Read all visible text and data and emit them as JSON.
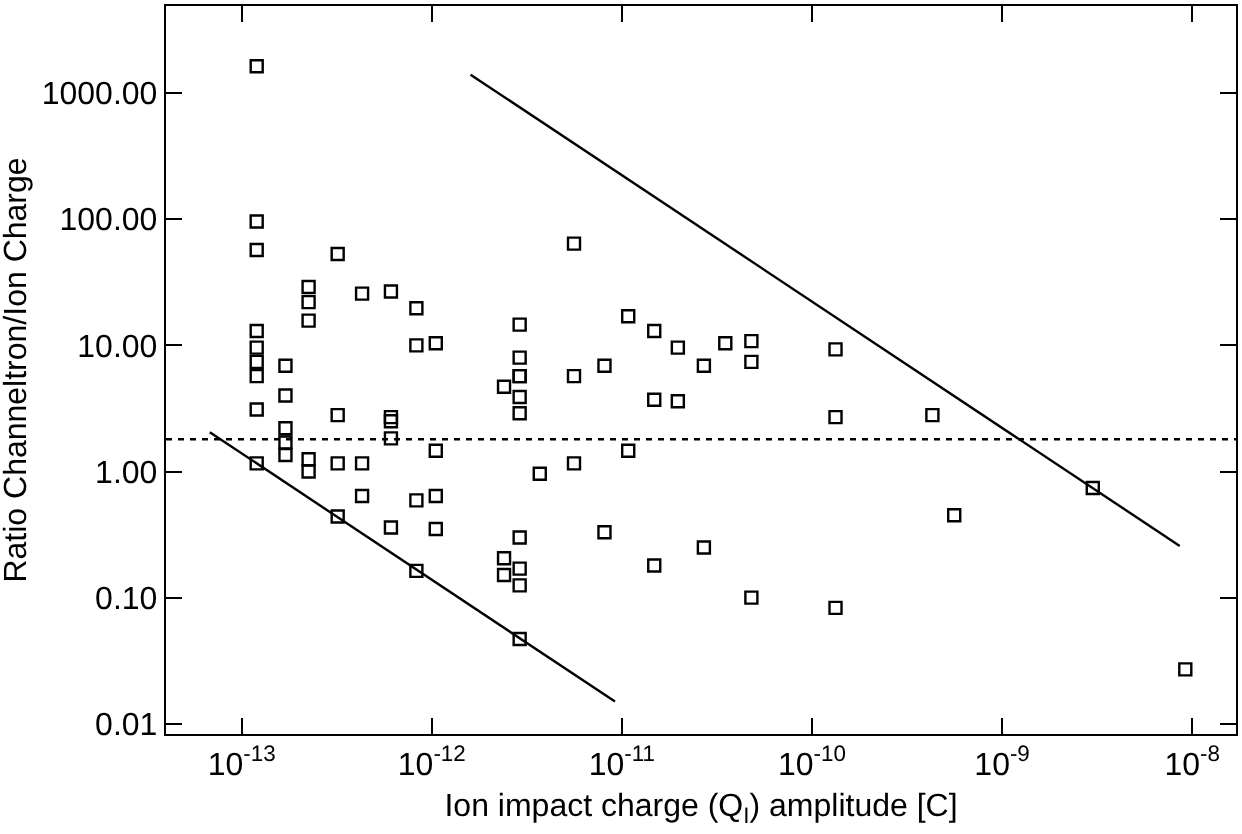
{
  "chart_data": {
    "type": "scatter",
    "xlabel": "Ion impact charge (Q$_{I}$) amplitude [C]",
    "ylabel": "Ratio Channeltron/Ion Charge",
    "log": "xy",
    "xlim": [
      4e-14,
      1.7e-08
    ],
    "xticks": [
      {
        "value": 1e-13,
        "label": "10$^{-13}$"
      },
      {
        "value": 1e-12,
        "label": "10$^{-12}$"
      },
      {
        "value": 1e-11,
        "label": "10$^{-11}$"
      },
      {
        "value": 1e-10,
        "label": "10$^{-10}$"
      },
      {
        "value": 1e-09,
        "label": "10$^{-9}$"
      },
      {
        "value": 1e-08,
        "label": "10$^{-8}$"
      }
    ],
    "ylim": [
      0.0083,
      4900
    ],
    "yticks": [
      {
        "value": 0.01,
        "label": "0.01"
      },
      {
        "value": 0.1,
        "label": "0.10"
      },
      {
        "value": 1,
        "label": "1.00"
      },
      {
        "value": 10,
        "label": "10.00"
      },
      {
        "value": 100,
        "label": "100.00"
      },
      {
        "value": 1000,
        "label": "1000.00"
      }
    ],
    "series": [
      {
        "marker": "square",
        "color": "#000000",
        "x": [
          1.2e-13,
          1.2e-13,
          1.2e-13,
          3.2e-13,
          2.25e-13,
          2.25e-13,
          2.25e-13,
          4.3e-13,
          6.1e-13,
          8.3e-13,
          8.3e-13,
          1.05e-12,
          1.2e-13,
          1.2e-13,
          1.2e-13,
          1.2e-13,
          1.7e-13,
          1.7e-13,
          1.2e-13,
          3.2e-13,
          6.1e-13,
          5.6e-12,
          2.9e-12,
          2.9e-12,
          2.9e-12,
          2.4e-12,
          2.9e-12,
          2.9e-12,
          2.9e-12,
          5.6e-12,
          8.1e-12,
          1.08e-11,
          1.48e-11,
          1.97e-11,
          2.7e-11,
          1.48e-11,
          1.97e-11,
          6.1e-13,
          6.1e-13,
          1.7e-13,
          1.7e-13,
          1.7e-13,
          1.2e-13,
          2.25e-13,
          2.25e-13,
          3.2e-13,
          4.3e-13,
          1.05e-12,
          4.3e-13,
          8.3e-13,
          1.05e-12,
          3.2e-13,
          6.1e-13,
          1.05e-12,
          8.3e-13,
          2.9e-12,
          2.4e-12,
          2.9e-12,
          2.4e-12,
          2.9e-12,
          2.9e-12,
          3.7e-12,
          5.6e-12,
          8.1e-12,
          1.08e-11,
          1.48e-11,
          2.7e-11,
          3.5e-11,
          4.8e-11,
          4.8e-11,
          1.33e-10,
          1.33e-10,
          4.3e-10,
          3e-09,
          5.6e-10,
          4.8e-11,
          1.33e-10,
          9.2e-09
        ],
        "values": [
          1630,
          96,
          57,
          53,
          29,
          22,
          15.7,
          25.7,
          26.7,
          19.7,
          10,
          10.4,
          13,
          9.6,
          7.4,
          5.7,
          6.9,
          4.0,
          3.1,
          2.8,
          2.7,
          64,
          14.6,
          8.0,
          5.7,
          4.7,
          3.9,
          2.9,
          5.7,
          5.7,
          6.9,
          17,
          13,
          9.6,
          6.9,
          3.7,
          3.6,
          2.5,
          1.83,
          2.2,
          1.7,
          1.35,
          1.16,
          1.25,
          1.0,
          1.16,
          1.16,
          1.46,
          0.64,
          0.59,
          0.64,
          0.44,
          0.36,
          0.35,
          0.163,
          0.3,
          0.205,
          0.17,
          0.151,
          0.125,
          0.047,
          0.96,
          1.16,
          0.33,
          1.46,
          0.18,
          0.25,
          10.4,
          10.8,
          7.4,
          9.3,
          2.7,
          2.8,
          0.74,
          0.45,
          0.1,
          0.083,
          0.027
        ]
      },
      {
        "type": "line",
        "marker": "none",
        "line_style": "solid",
        "color": "#000000",
        "x": [
          1.6e-12,
          8.6e-09
        ],
        "values": [
          1400,
          0.257
        ]
      },
      {
        "type": "line",
        "marker": "none",
        "line_style": "solid",
        "color": "#000000",
        "x": [
          6.8e-14,
          9.2e-12
        ],
        "values": [
          2.05,
          0.015
        ]
      }
    ],
    "ref_lines": [
      {
        "axis": "y",
        "value": 1.8,
        "line_style": "dotted",
        "color": "#000000"
      }
    ]
  }
}
